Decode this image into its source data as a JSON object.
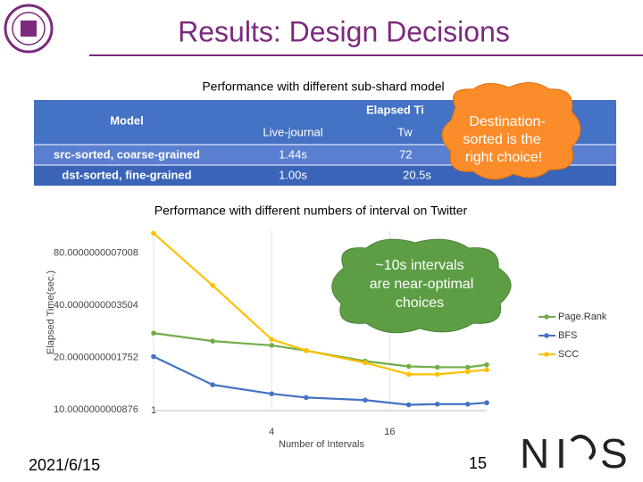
{
  "title": "Results: Design Decisions",
  "table": {
    "caption": "Performance with different sub-shard model",
    "header": [
      "Model",
      "Elapsed Ti",
      "Live-journal",
      "Tw"
    ],
    "rows": [
      [
        "src-sorted, coarse-grained",
        "1.44s",
        "72"
      ],
      [
        "dst-sorted, fine-grained",
        "1.00s",
        "20.5s"
      ]
    ]
  },
  "callouts": [
    [
      "Destination-",
      "sorted is the",
      "right choice!"
    ],
    [
      "~10s intervals",
      "are near-optimal",
      "choices"
    ]
  ],
  "chart_data": {
    "type": "line",
    "title": "Performance with different numbers of interval on Twitter",
    "x_label": "Number of Intervals",
    "y_label": "Elapsed Time(sec.)",
    "x": [
      1,
      2,
      4,
      6,
      12,
      20,
      28,
      40,
      50
    ],
    "series": [
      {
        "name": "Page.Rank",
        "color": "#70ad47",
        "values": [
          28,
          25.2,
          23.8,
          22.2,
          19.3,
          18,
          17.8,
          17.8,
          18.4
        ]
      },
      {
        "name": "BFS",
        "color": "#4472c4",
        "values": [
          20.5,
          14.1,
          12.5,
          11.9,
          11.5,
          10.8,
          10.9,
          10.9,
          11.1
        ]
      },
      {
        "name": "SCC",
        "color": "#ffc000",
        "values": [
          105.6,
          52.8,
          25.8,
          22.2,
          18.9,
          16.2,
          16.2,
          16.8,
          17.2
        ]
      }
    ],
    "xlim": [
      1,
      50
    ],
    "xticks": [
      1,
      4,
      16
    ],
    "xscale": "log",
    "ylim": [
      10,
      110
    ],
    "yticks": [
      10.0000000000876,
      20.0000000001752,
      40.0000000003504,
      80.0000000007008
    ],
    "yscale": "log",
    "grid": true,
    "legend": "right"
  },
  "footer": {
    "date": "2021/6/15",
    "page": "15",
    "logo": [
      "N",
      "I",
      "S"
    ]
  }
}
